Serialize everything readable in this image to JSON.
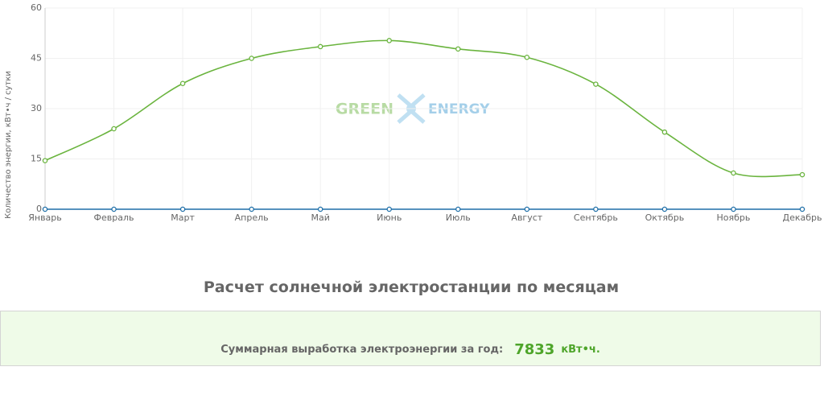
{
  "chart_data": {
    "type": "line",
    "y_label": "Количество энергии, кВт•ч / сутки",
    "categories": [
      "Январь",
      "Февраль",
      "Март",
      "Апрель",
      "Май",
      "Июнь",
      "Июль",
      "Август",
      "Сентябрь",
      "Октябрь",
      "Ноябрь",
      "Декабрь"
    ],
    "series": [
      {
        "color": "#6ab43e",
        "values": [
          14.5,
          24,
          37.5,
          45,
          48.5,
          50.3,
          47.8,
          45.3,
          37.3,
          23,
          10.8,
          10.3
        ]
      },
      {
        "color": "#1f6fa8",
        "values": [
          0,
          0,
          0,
          0,
          0,
          0,
          0,
          0,
          0,
          0,
          0,
          0
        ]
      }
    ],
    "ylim": [
      0,
      60
    ],
    "yticks": [
      0,
      15,
      30,
      45,
      60
    ],
    "grid": true
  },
  "watermark": {
    "left": "GREEN",
    "right": "ENERGY"
  },
  "section_title": "Расчет солнечной электростанции по месяцам",
  "summary": {
    "label": "Суммарная выработка электроэнергии за год:",
    "value": 7833,
    "unit": "кВт•ч."
  }
}
